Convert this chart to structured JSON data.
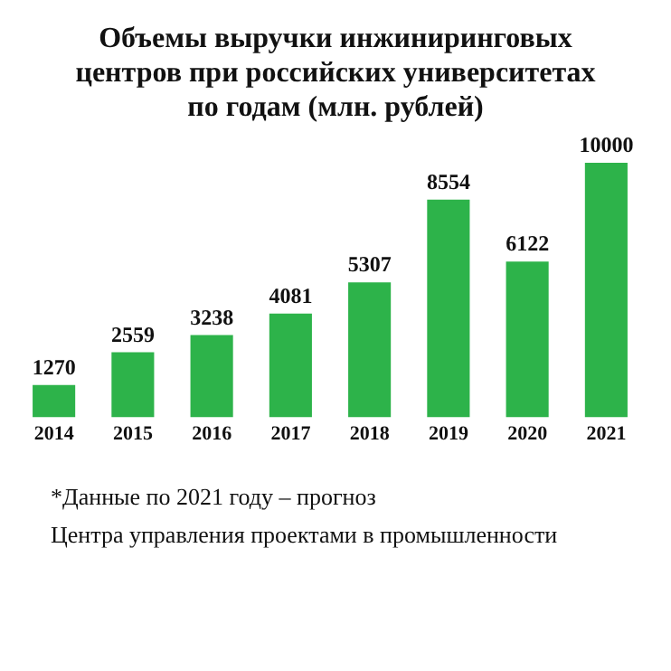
{
  "chart_data": {
    "type": "bar",
    "title": "Объемы выручки инжиниринговых центров при российских университетах по годам (млн. рублей)",
    "categories": [
      "2014",
      "2015",
      "2016",
      "2017",
      "2018",
      "2019",
      "2020",
      "2021"
    ],
    "values": [
      1270,
      2559,
      3238,
      4081,
      5307,
      8554,
      6122,
      10000
    ],
    "color": "#2db34a",
    "data_labels": true,
    "grid": false,
    "legend": false,
    "annotations": [
      "*Данные по 2021 году – прогноз",
      "Центра управления проектами в промышленности"
    ]
  }
}
